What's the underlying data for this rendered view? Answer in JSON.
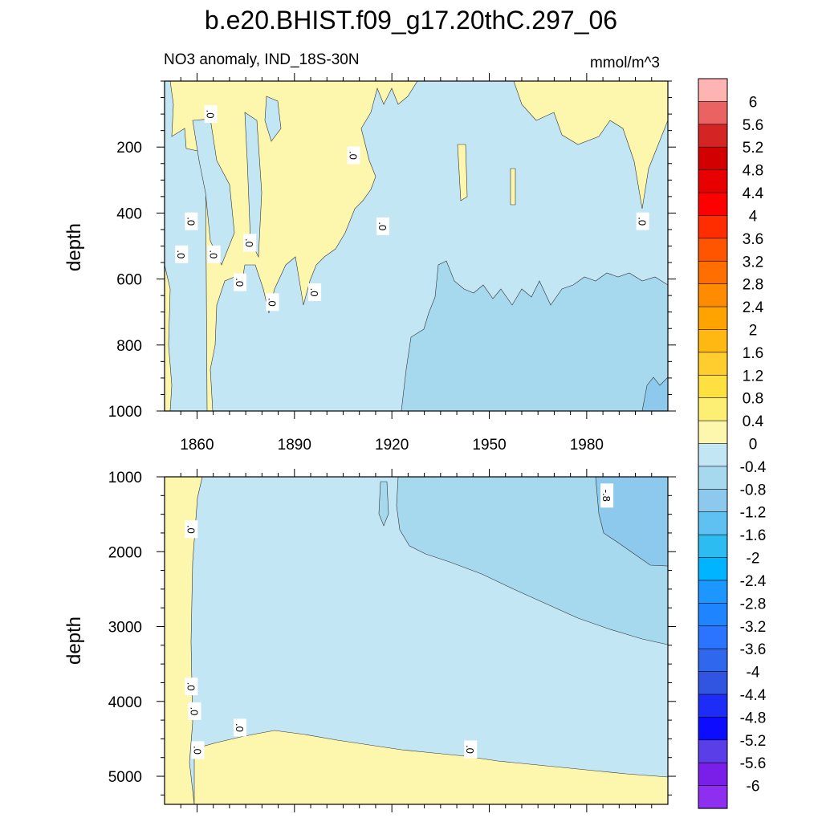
{
  "figure": {
    "title": "b.e20.BHIST.f09_g17.20thC.297_06",
    "left_subtitle": "NO3 anomaly, IND_18S-30N",
    "right_subtitle": "mmol/m^3"
  },
  "colors": {
    "zero_to_pos": "#fdf6ad",
    "zero_to_neg": "#c3e6f4",
    "neg04_to_neg08": "#a6d8ee",
    "neg08_to_neg12": "#8dc9ec"
  },
  "chart_data": [
    {
      "type": "heatmap",
      "panel": "upper",
      "ylabel": "depth",
      "xlim": [
        1850,
        2005
      ],
      "ylim": [
        1000,
        0
      ],
      "x_ticks": [
        1860,
        1890,
        1920,
        1950,
        1980
      ],
      "x_tick_labels": [
        "1860",
        "1890",
        "1920",
        "1950",
        "1980"
      ],
      "y_ticks": [
        200,
        400,
        600,
        800,
        1000
      ],
      "y_tick_labels": [
        "200",
        "400",
        "600",
        "800",
        "1000"
      ],
      "contour_labels": [
        {
          "text": ".0",
          "x": 1864,
          "y": 100
        },
        {
          "text": ".0",
          "x": 1908,
          "y": 225
        },
        {
          "text": ".0",
          "x": 1858,
          "y": 425
        },
        {
          "text": ".0",
          "x": 1917,
          "y": 440
        },
        {
          "text": ".0",
          "x": 1997,
          "y": 425
        },
        {
          "text": ".0",
          "x": 1876,
          "y": 490
        },
        {
          "text": ".0",
          "x": 1855,
          "y": 525
        },
        {
          "text": ".0",
          "x": 1865,
          "y": 525
        },
        {
          "text": ".0",
          "x": 1873,
          "y": 610
        },
        {
          "text": ".0",
          "x": 1896,
          "y": 640
        },
        {
          "text": ".0",
          "x": 1883,
          "y": 670
        }
      ]
    },
    {
      "type": "heatmap",
      "panel": "lower",
      "ylabel": "depth",
      "xlim": [
        1850,
        2005
      ],
      "ylim": [
        5375,
        1000
      ],
      "x_ticks": [
        1860,
        1890,
        1920,
        1950,
        1980
      ],
      "y_ticks": [
        1000,
        2000,
        3000,
        4000,
        5000
      ],
      "y_tick_labels": [
        "1000",
        "2000",
        "3000",
        "4000",
        "5000"
      ],
      "contour_labels": [
        {
          "text": ".0",
          "x": 1858,
          "y": 1700
        },
        {
          "text": "-.8",
          "x": 1986,
          "y": 1250
        },
        {
          "text": ".0",
          "x": 1858,
          "y": 3800
        },
        {
          "text": ".0",
          "x": 1859,
          "y": 4130
        },
        {
          "text": ".0",
          "x": 1873,
          "y": 4350
        },
        {
          "text": ".0",
          "x": 1860,
          "y": 4650
        },
        {
          "text": ".0",
          "x": 1944,
          "y": 4640
        }
      ]
    }
  ],
  "colorbar": {
    "labels": [
      "6",
      "5.6",
      "5.2",
      "4.8",
      "4.4",
      "4",
      "3.6",
      "3.2",
      "2.8",
      "2.4",
      "2",
      "1.6",
      "1.2",
      "0.8",
      "0.4",
      "0",
      "-0.4",
      "-0.8",
      "-1.2",
      "-1.6",
      "-2",
      "-2.4",
      "-2.8",
      "-3.2",
      "-3.6",
      "-4",
      "-4.4",
      "-4.8",
      "-5.2",
      "-5.6",
      "-6"
    ],
    "colors": [
      "#ffb4b4",
      "#eb6262",
      "#d42424",
      "#d20000",
      "#e60000",
      "#ff0000",
      "#ff2d00",
      "#ff5500",
      "#ff6e00",
      "#ff8c00",
      "#ffa300",
      "#ffb812",
      "#ffcd2e",
      "#ffe041",
      "#fdef74",
      "#fdf6ad",
      "#c3e6f4",
      "#a6d8ee",
      "#8dc9ec",
      "#5fc1f1",
      "#2cbcf2",
      "#00b4ff",
      "#1b97ff",
      "#1e84ff",
      "#2a74ff",
      "#2f68ec",
      "#3155e0",
      "#1e2cf7",
      "#0c0cff",
      "#5a3ee8",
      "#7a1fe8",
      "#8e2ef0"
    ]
  }
}
